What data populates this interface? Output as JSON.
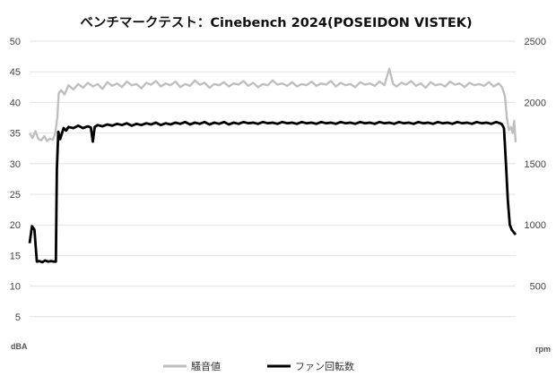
{
  "chart_data": {
    "type": "line",
    "title": "ベンチマークテスト：Cinebench 2024(POSEIDON VISTEK)",
    "y_left": {
      "unit": "dBA",
      "min": 0,
      "max": 50,
      "ticks": [
        5,
        10,
        15,
        20,
        25,
        30,
        35,
        40,
        45,
        50
      ]
    },
    "y_right": {
      "unit": "rpm",
      "min": 0,
      "max": 2500,
      "ticks": [
        500,
        1000,
        1500,
        2000,
        2500
      ]
    },
    "grid": true,
    "legend_position": "bottom",
    "x": {
      "min": 0,
      "max": 100,
      "tick_labels": []
    },
    "series": [
      {
        "name": "騒音値",
        "axis": "left",
        "color": "#bfbfbf",
        "points": [
          [
            0,
            35.0
          ],
          [
            0.6,
            34.2
          ],
          [
            1.2,
            35.3
          ],
          [
            1.8,
            34.0
          ],
          [
            2.4,
            33.8
          ],
          [
            3.0,
            34.5
          ],
          [
            3.6,
            33.7
          ],
          [
            4.2,
            34.1
          ],
          [
            4.8,
            33.9
          ],
          [
            5.3,
            35.0
          ],
          [
            5.7,
            37.5
          ],
          [
            6.0,
            41.5
          ],
          [
            6.5,
            42.0
          ],
          [
            7.2,
            41.3
          ],
          [
            8.0,
            42.8
          ],
          [
            9.0,
            42.1
          ],
          [
            10.0,
            43.0
          ],
          [
            11.0,
            42.4
          ],
          [
            12.0,
            43.2
          ],
          [
            13.0,
            42.6
          ],
          [
            14.0,
            43.0
          ],
          [
            15.0,
            42.2
          ],
          [
            16.0,
            43.3
          ],
          [
            17.0,
            42.7
          ],
          [
            18.0,
            43.1
          ],
          [
            19.0,
            42.5
          ],
          [
            20.0,
            43.4
          ],
          [
            21.0,
            42.8
          ],
          [
            22.0,
            43.0
          ],
          [
            23.0,
            42.3
          ],
          [
            24.0,
            43.2
          ],
          [
            25.0,
            42.9
          ],
          [
            26.0,
            43.5
          ],
          [
            27.0,
            42.6
          ],
          [
            28.0,
            43.1
          ],
          [
            29.0,
            42.8
          ],
          [
            30.0,
            43.4
          ],
          [
            31.0,
            42.5
          ],
          [
            32.0,
            43.0
          ],
          [
            33.0,
            42.7
          ],
          [
            34.0,
            43.6
          ],
          [
            35.0,
            42.9
          ],
          [
            36.0,
            43.2
          ],
          [
            37.0,
            42.4
          ],
          [
            38.0,
            43.0
          ],
          [
            39.0,
            42.8
          ],
          [
            40.0,
            43.3
          ],
          [
            41.0,
            42.6
          ],
          [
            42.0,
            43.1
          ],
          [
            43.0,
            42.9
          ],
          [
            44.0,
            43.5
          ],
          [
            45.0,
            42.7
          ],
          [
            46.0,
            43.2
          ],
          [
            47.0,
            42.5
          ],
          [
            48.0,
            43.0
          ],
          [
            49.0,
            42.8
          ],
          [
            50.0,
            43.6
          ],
          [
            51.0,
            42.9
          ],
          [
            52.0,
            43.1
          ],
          [
            53.0,
            42.7
          ],
          [
            54.0,
            43.3
          ],
          [
            55.0,
            42.6
          ],
          [
            56.0,
            43.0
          ],
          [
            57.0,
            42.8
          ],
          [
            58.0,
            43.4
          ],
          [
            59.0,
            42.7
          ],
          [
            60.0,
            43.1
          ],
          [
            61.0,
            42.9
          ],
          [
            62.0,
            43.5
          ],
          [
            63.0,
            42.6
          ],
          [
            64.0,
            43.2
          ],
          [
            65.0,
            42.8
          ],
          [
            66.0,
            43.0
          ],
          [
            67.0,
            42.5
          ],
          [
            68.0,
            43.3
          ],
          [
            69.0,
            42.9
          ],
          [
            70.0,
            43.1
          ],
          [
            71.0,
            42.7
          ],
          [
            72.0,
            43.4
          ],
          [
            73.0,
            42.8
          ],
          [
            74.0,
            45.5
          ],
          [
            74.8,
            43.0
          ],
          [
            75.5,
            42.6
          ],
          [
            76.5,
            43.2
          ],
          [
            77.5,
            42.9
          ],
          [
            78.5,
            43.5
          ],
          [
            79.5,
            42.7
          ],
          [
            80.5,
            43.1
          ],
          [
            81.5,
            42.4
          ],
          [
            82.5,
            43.3
          ],
          [
            83.5,
            42.8
          ],
          [
            84.5,
            43.0
          ],
          [
            85.5,
            42.6
          ],
          [
            86.5,
            43.4
          ],
          [
            87.5,
            42.9
          ],
          [
            88.5,
            43.1
          ],
          [
            89.5,
            42.5
          ],
          [
            90.5,
            43.2
          ],
          [
            91.5,
            42.8
          ],
          [
            92.5,
            43.0
          ],
          [
            93.5,
            42.7
          ],
          [
            94.5,
            43.3
          ],
          [
            95.5,
            42.6
          ],
          [
            96.5,
            43.1
          ],
          [
            97.2,
            42.5
          ],
          [
            97.8,
            41.0
          ],
          [
            98.2,
            37.5
          ],
          [
            98.6,
            35.5
          ],
          [
            99.0,
            36.0
          ],
          [
            99.4,
            35.0
          ],
          [
            99.7,
            37.0
          ],
          [
            100,
            33.5
          ]
        ]
      },
      {
        "name": "ファン回転数",
        "axis": "right",
        "color": "#000000",
        "points": [
          [
            0,
            850
          ],
          [
            0.5,
            990
          ],
          [
            1.0,
            960
          ],
          [
            1.5,
            700
          ],
          [
            2.0,
            705
          ],
          [
            2.6,
            695
          ],
          [
            3.2,
            710
          ],
          [
            3.8,
            700
          ],
          [
            4.4,
            705
          ],
          [
            5.0,
            700
          ],
          [
            5.4,
            700
          ],
          [
            5.6,
            1450
          ],
          [
            5.9,
            1760
          ],
          [
            6.3,
            1700
          ],
          [
            7.0,
            1790
          ],
          [
            7.5,
            1770
          ],
          [
            8.0,
            1800
          ],
          [
            9.0,
            1790
          ],
          [
            10.0,
            1810
          ],
          [
            11.0,
            1790
          ],
          [
            12.0,
            1805
          ],
          [
            12.6,
            1795
          ],
          [
            13.0,
            1680
          ],
          [
            13.4,
            1800
          ],
          [
            14.0,
            1815
          ],
          [
            15.0,
            1805
          ],
          [
            16.0,
            1820
          ],
          [
            17.0,
            1810
          ],
          [
            18.0,
            1825
          ],
          [
            19.0,
            1815
          ],
          [
            20.0,
            1830
          ],
          [
            21.0,
            1810
          ],
          [
            22.0,
            1825
          ],
          [
            23.0,
            1815
          ],
          [
            24.0,
            1830
          ],
          [
            25.0,
            1820
          ],
          [
            26.0,
            1835
          ],
          [
            27.0,
            1815
          ],
          [
            28.0,
            1830
          ],
          [
            29.0,
            1820
          ],
          [
            30.0,
            1835
          ],
          [
            31.0,
            1825
          ],
          [
            32.0,
            1840
          ],
          [
            33.0,
            1820
          ],
          [
            34.0,
            1835
          ],
          [
            35.0,
            1825
          ],
          [
            36.0,
            1840
          ],
          [
            37.0,
            1820
          ],
          [
            38.0,
            1835
          ],
          [
            39.0,
            1825
          ],
          [
            40.0,
            1840
          ],
          [
            41.0,
            1820
          ],
          [
            42.0,
            1835
          ],
          [
            43.0,
            1825
          ],
          [
            44.0,
            1840
          ],
          [
            45.0,
            1830
          ],
          [
            46.0,
            1835
          ],
          [
            47.0,
            1825
          ],
          [
            48.0,
            1840
          ],
          [
            49.0,
            1830
          ],
          [
            50.0,
            1835
          ],
          [
            51.0,
            1825
          ],
          [
            52.0,
            1840
          ],
          [
            53.0,
            1830
          ],
          [
            54.0,
            1835
          ],
          [
            55.0,
            1825
          ],
          [
            56.0,
            1840
          ],
          [
            57.0,
            1830
          ],
          [
            58.0,
            1835
          ],
          [
            59.0,
            1825
          ],
          [
            60.0,
            1840
          ],
          [
            61.0,
            1830
          ],
          [
            62.0,
            1835
          ],
          [
            63.0,
            1825
          ],
          [
            64.0,
            1840
          ],
          [
            65.0,
            1830
          ],
          [
            66.0,
            1835
          ],
          [
            67.0,
            1825
          ],
          [
            68.0,
            1840
          ],
          [
            69.0,
            1830
          ],
          [
            70.0,
            1835
          ],
          [
            71.0,
            1825
          ],
          [
            72.0,
            1840
          ],
          [
            73.0,
            1830
          ],
          [
            74.0,
            1835
          ],
          [
            75.0,
            1825
          ],
          [
            76.0,
            1840
          ],
          [
            77.0,
            1830
          ],
          [
            78.0,
            1835
          ],
          [
            79.0,
            1825
          ],
          [
            80.0,
            1840
          ],
          [
            81.0,
            1830
          ],
          [
            82.0,
            1835
          ],
          [
            83.0,
            1825
          ],
          [
            84.0,
            1840
          ],
          [
            85.0,
            1830
          ],
          [
            86.0,
            1835
          ],
          [
            87.0,
            1825
          ],
          [
            88.0,
            1840
          ],
          [
            89.0,
            1830
          ],
          [
            90.0,
            1835
          ],
          [
            91.0,
            1825
          ],
          [
            92.0,
            1840
          ],
          [
            93.0,
            1830
          ],
          [
            94.0,
            1835
          ],
          [
            95.0,
            1825
          ],
          [
            96.0,
            1840
          ],
          [
            96.8,
            1830
          ],
          [
            97.2,
            1820
          ],
          [
            97.6,
            1790
          ],
          [
            98.0,
            1500
          ],
          [
            98.4,
            1200
          ],
          [
            98.8,
            1000
          ],
          [
            99.2,
            960
          ],
          [
            99.6,
            940
          ],
          [
            100,
            920
          ]
        ]
      }
    ]
  }
}
